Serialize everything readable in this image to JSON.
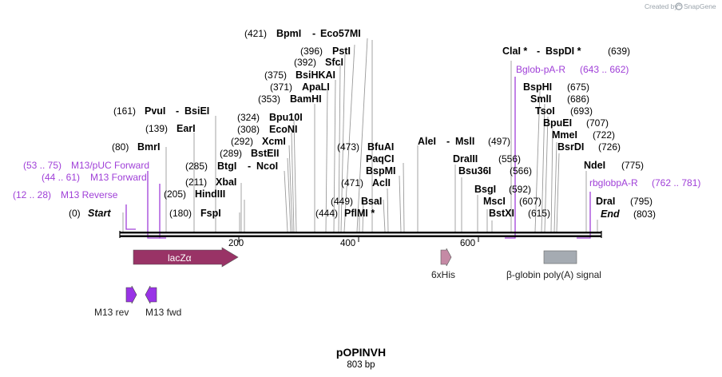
{
  "plasmid": {
    "name": "pOPINVH",
    "length_label": "803 bp"
  },
  "credit": {
    "text": "Created by",
    "brand": "SnapGene"
  },
  "ticks": [
    "200",
    "400",
    "600"
  ],
  "ends": {
    "start_pos": "(0)",
    "start": "Start",
    "end_pos": "(803)",
    "end": "End"
  },
  "enzymes": [
    {
      "pos": "(421)",
      "name": "BpmI",
      "name2": "Eco57MI"
    },
    {
      "pos": "(396)",
      "name": "PstI"
    },
    {
      "pos": "(392)",
      "name": "SfcI"
    },
    {
      "pos": "(375)",
      "name": "BsiHKAI"
    },
    {
      "pos": "(371)",
      "name": "ApaLI"
    },
    {
      "pos": "(353)",
      "name": "BamHI"
    },
    {
      "pos": "(161)",
      "name": "PvuI",
      "name2": "BsiEI"
    },
    {
      "pos": "(324)",
      "name": "Bpu10I"
    },
    {
      "pos": "(139)",
      "name": "EarI"
    },
    {
      "pos": "(308)",
      "name": "EcoNI"
    },
    {
      "pos": "(292)",
      "name": "XcmI"
    },
    {
      "pos": "(80)",
      "name": "BmrI"
    },
    {
      "pos": "(289)",
      "name": "BstEII"
    },
    {
      "pos": "(285)",
      "name": "BtgI",
      "name2": "NcoI"
    },
    {
      "pos": "(211)",
      "name": "XbaI"
    },
    {
      "pos": "(205)",
      "name": "HindIII"
    },
    {
      "pos": "(180)",
      "name": "FspI"
    },
    {
      "pos": "(473)",
      "name": "BfuAI"
    },
    {
      "name": "PaqCI"
    },
    {
      "name": "BspMI"
    },
    {
      "pos": "(471)",
      "name": "AclI"
    },
    {
      "pos": "(449)",
      "name": "BsaI"
    },
    {
      "pos": "(444)",
      "name": "PflMI *"
    },
    {
      "name": "AleI",
      "name2": "MslI",
      "pos": "(497)"
    },
    {
      "name": "DraIII",
      "pos": "(556)"
    },
    {
      "name": "Bsu36I",
      "pos": "(566)"
    },
    {
      "name": "BsgI",
      "pos": "(592)"
    },
    {
      "name": "MscI",
      "pos": "(607)"
    },
    {
      "name": "BstXI",
      "pos": "(615)"
    },
    {
      "name": "ClaI *",
      "name2": "BspDI *",
      "pos": "(639)"
    },
    {
      "name": "BspHI",
      "pos": "(675)"
    },
    {
      "name": "SmlI",
      "pos": "(686)"
    },
    {
      "name": "TsoI",
      "pos": "(693)"
    },
    {
      "name": "BpuEI",
      "pos": "(707)"
    },
    {
      "name": "MmeI",
      "pos": "(722)"
    },
    {
      "name": "BsrDI",
      "pos": "(726)"
    },
    {
      "name": "NdeI",
      "pos": "(775)"
    },
    {
      "name": "DraI",
      "pos": "(795)"
    }
  ],
  "primers": [
    {
      "range": "(53 .. 75)",
      "name": "M13/pUC Forward"
    },
    {
      "range": "(44 .. 61)",
      "name": "M13 Forward"
    },
    {
      "range": "(12 .. 28)",
      "name": "M13 Reverse"
    },
    {
      "name": "Bglob-pA-R",
      "range": "(643 .. 662)"
    },
    {
      "name": "rbglobpA-R",
      "range": "(762 .. 781)"
    }
  ],
  "features": [
    {
      "name": "lacZα",
      "color": "#993366"
    },
    {
      "name": "6xHis",
      "color": "#c58aa5"
    },
    {
      "name": "β-globin poly(A) signal",
      "color": "#a5abb2"
    },
    {
      "name": "M13 rev",
      "color": "#9933e6"
    },
    {
      "name": "M13 fwd",
      "color": "#9933e6"
    }
  ],
  "colors": {
    "primer": "#a040d8",
    "backbone": "#000000"
  }
}
